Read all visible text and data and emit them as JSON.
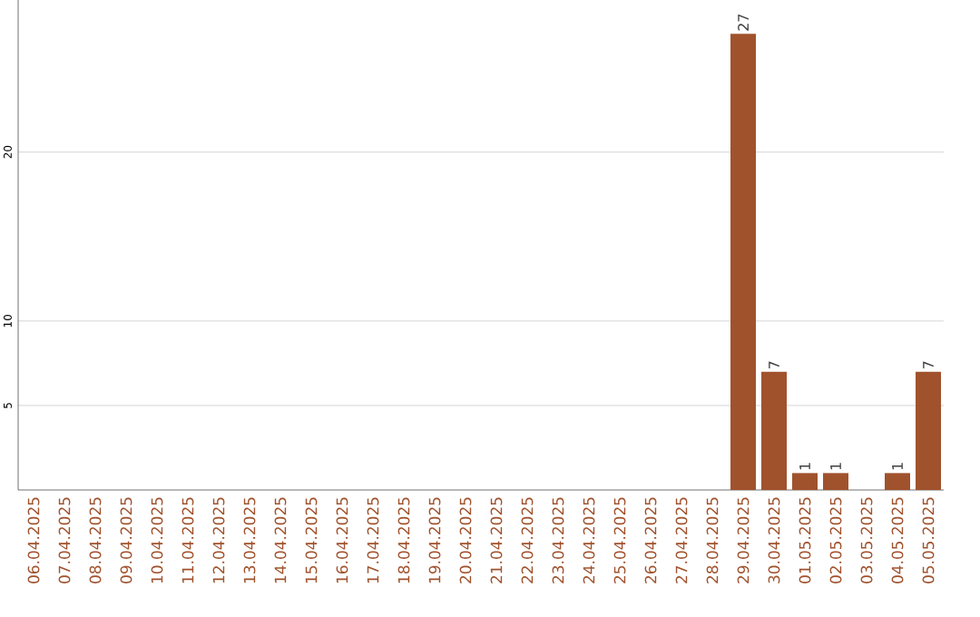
{
  "chart_data": {
    "type": "bar",
    "categories": [
      "06.04.2025",
      "07.04.2025",
      "08.04.2025",
      "09.04.2025",
      "10.04.2025",
      "11.04.2025",
      "12.04.2025",
      "13.04.2025",
      "14.04.2025",
      "15.04.2025",
      "16.04.2025",
      "17.04.2025",
      "18.04.2025",
      "19.04.2025",
      "20.04.2025",
      "21.04.2025",
      "22.04.2025",
      "23.04.2025",
      "24.04.2025",
      "25.04.2025",
      "26.04.2025",
      "27.04.2025",
      "28.04.2025",
      "29.04.2025",
      "30.04.2025",
      "01.05.2025",
      "02.05.2025",
      "03.05.2025",
      "04.05.2025",
      "05.05.2025"
    ],
    "values": [
      0,
      0,
      0,
      0,
      0,
      0,
      0,
      0,
      0,
      0,
      0,
      0,
      0,
      0,
      0,
      0,
      0,
      0,
      0,
      0,
      0,
      0,
      0,
      27,
      7,
      1,
      1,
      0,
      1,
      7
    ],
    "value_labels": [
      null,
      null,
      null,
      null,
      null,
      null,
      null,
      null,
      null,
      null,
      null,
      null,
      null,
      null,
      null,
      null,
      null,
      null,
      null,
      null,
      null,
      null,
      null,
      "27",
      "7",
      "1",
      "1",
      null,
      "1",
      "7"
    ],
    "color": "#a0522d",
    "ylim": [
      0,
      29
    ],
    "yticks": [
      5,
      10,
      20
    ],
    "grid": "y"
  }
}
